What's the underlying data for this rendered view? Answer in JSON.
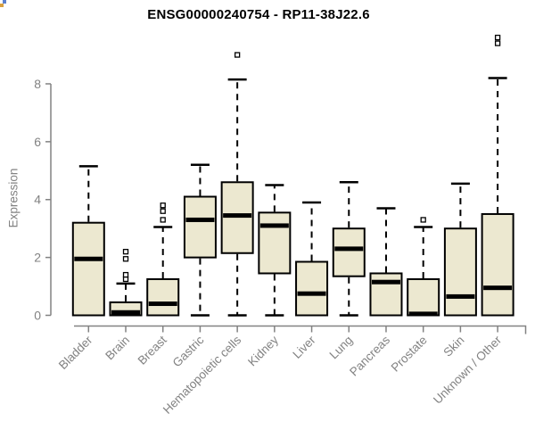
{
  "page": {
    "background": "#ffffff"
  },
  "chart_data": {
    "type": "boxplot",
    "title": "ENSG00000240754 - RP11-38J22.6",
    "ylabel": "Expression",
    "xlabel": "",
    "yticks": [
      0,
      2,
      4,
      6,
      8
    ],
    "ylim": [
      0,
      9.9
    ],
    "grid": false,
    "legend": false,
    "x_label_rotation_deg": 45,
    "categories": [
      "Bladder",
      "Brain",
      "Breast",
      "Gastric",
      "Hematopoietic cells",
      "Kidney",
      "Liver",
      "Lung",
      "Pancreas",
      "Prostate",
      "Skin",
      "Unknown / Other"
    ],
    "boxes": [
      {
        "label": "Bladder",
        "whisker_low": 0,
        "q1": 0,
        "median": 1.95,
        "q3": 3.2,
        "whisker_high": 5.15,
        "outliers": []
      },
      {
        "label": "Brain",
        "whisker_low": 0,
        "q1": 0,
        "median": 0.1,
        "q3": 0.45,
        "whisker_high": 1.1,
        "outliers": [
          1.25,
          1.4,
          1.95,
          2.2
        ]
      },
      {
        "label": "Breast",
        "whisker_low": 0,
        "q1": 0,
        "median": 0.4,
        "q3": 1.25,
        "whisker_high": 3.05,
        "outliers": [
          3.3,
          3.6,
          3.8
        ]
      },
      {
        "label": "Gastric",
        "whisker_low": 0,
        "q1": 2.0,
        "median": 3.3,
        "q3": 4.1,
        "whisker_high": 5.2,
        "outliers": []
      },
      {
        "label": "Hematopoietic cells",
        "whisker_low": 0,
        "q1": 2.15,
        "median": 3.45,
        "q3": 4.6,
        "whisker_high": 8.15,
        "outliers": [
          9.0
        ]
      },
      {
        "label": "Kidney",
        "whisker_low": 0,
        "q1": 1.45,
        "median": 3.1,
        "q3": 3.55,
        "whisker_high": 4.5,
        "outliers": []
      },
      {
        "label": "Liver",
        "whisker_low": 0,
        "q1": 0,
        "median": 0.75,
        "q3": 1.85,
        "whisker_high": 3.9,
        "outliers": []
      },
      {
        "label": "Lung",
        "whisker_low": 0,
        "q1": 1.35,
        "median": 2.3,
        "q3": 3.0,
        "whisker_high": 4.6,
        "outliers": []
      },
      {
        "label": "Pancreas",
        "whisker_low": 0,
        "q1": 0,
        "median": 1.15,
        "q3": 1.45,
        "whisker_high": 3.7,
        "outliers": []
      },
      {
        "label": "Prostate",
        "whisker_low": 0,
        "q1": 0,
        "median": 0.05,
        "q3": 1.25,
        "whisker_high": 3.05,
        "outliers": [
          3.3
        ]
      },
      {
        "label": "Skin",
        "whisker_low": 0,
        "q1": 0,
        "median": 0.65,
        "q3": 3.0,
        "whisker_high": 4.55,
        "outliers": []
      },
      {
        "label": "Unknown / Other",
        "whisker_low": 0,
        "q1": 0,
        "median": 0.95,
        "q3": 3.5,
        "whisker_high": 8.2,
        "outliers": [
          9.4,
          9.6
        ]
      }
    ],
    "style": {
      "box_fill": "#ece8d0",
      "box_stroke": "#000000",
      "median_color": "#000000",
      "axis_color": "#828282",
      "title_color": "#000000",
      "outlier_fill": "#ffffff"
    }
  },
  "decorations": {
    "corner_glyph_colors": [
      "#5b7fd0",
      "#d9a03f"
    ]
  }
}
